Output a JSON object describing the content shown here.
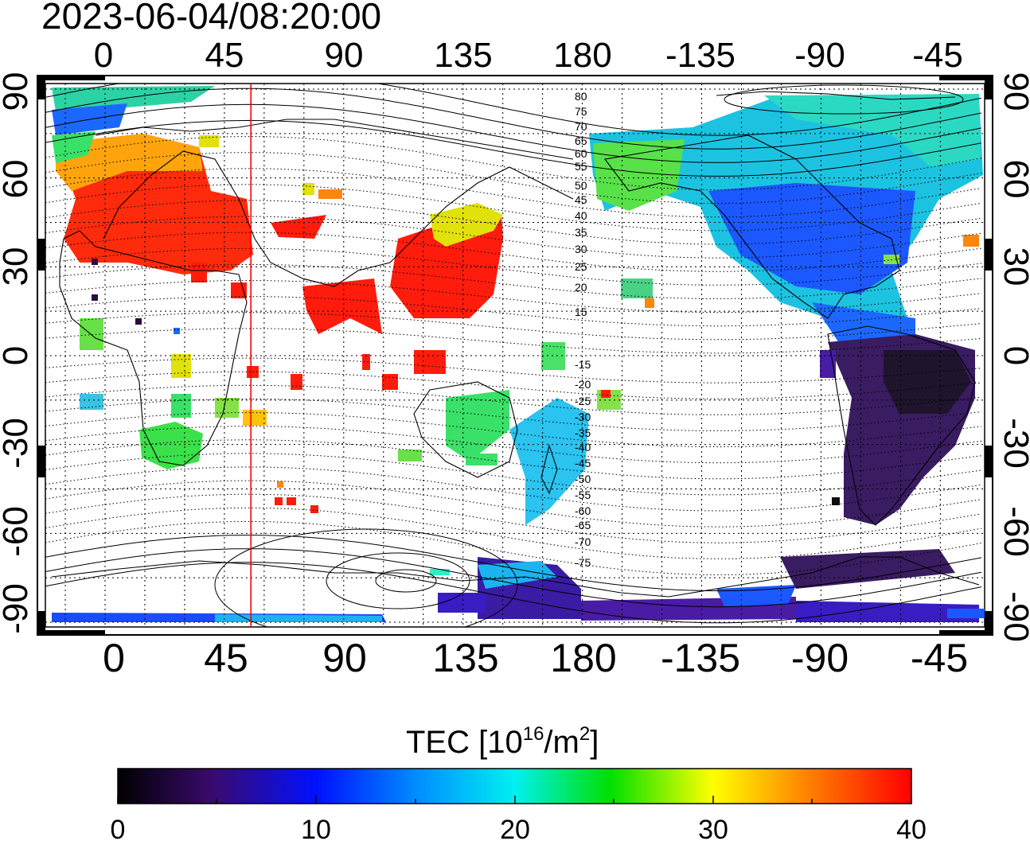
{
  "timestamp": "2023-06-04/08:20:00",
  "axes": {
    "lon_ticks_top": [
      "0",
      "45",
      "90",
      "135",
      "180",
      "-135",
      "-90",
      "-45"
    ],
    "lon_ticks_bottom": [
      "0",
      "45",
      "90",
      "135",
      "180",
      "-135",
      "-90",
      "-45"
    ],
    "lat_ticks_left": [
      "90",
      "60",
      "30",
      "0",
      "-30",
      "-60",
      "-90"
    ],
    "lat_ticks_right": [
      "90",
      "60",
      "30",
      "0",
      "-30",
      "-60",
      "-90"
    ]
  },
  "magnetic_latitude_labels": [
    "80",
    "75",
    "70",
    "65",
    "60",
    "55",
    "50",
    "45",
    "40",
    "35",
    "30",
    "25",
    "20",
    "15",
    "-15",
    "-20",
    "-25",
    "-30",
    "-35",
    "-40",
    "-45",
    "-50",
    "-55",
    "-60",
    "-65",
    "-70",
    "-75"
  ],
  "colorbar": {
    "title_prefix": "TEC  [10",
    "title_exp1": "16",
    "title_mid": "/m",
    "title_exp2": "2",
    "title_suffix": "]",
    "tick_labels": [
      "0",
      "10",
      "20",
      "30",
      "40"
    ],
    "min": 0,
    "max": 40
  },
  "marker_line": {
    "longitude": 55,
    "color": "#ff0000"
  },
  "tec_regions": [
    {
      "region": "europe",
      "tec": 37
    },
    {
      "region": "east-asia",
      "tec": 38
    },
    {
      "region": "north-america",
      "tec": 13
    },
    {
      "region": "south-america",
      "tec": 3
    },
    {
      "region": "australia",
      "tec": 22
    },
    {
      "region": "south-africa",
      "tec": 24
    },
    {
      "region": "antarctica",
      "tec": 8
    }
  ]
}
